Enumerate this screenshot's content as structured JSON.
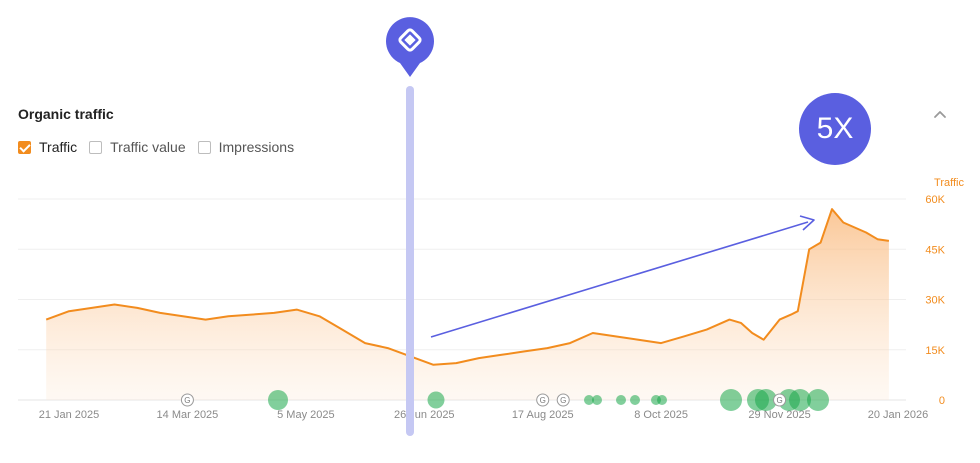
{
  "panel": {
    "title": "Organic traffic",
    "collapse_icon": "chevron-up-icon"
  },
  "legend": [
    {
      "label": "Traffic",
      "checked": true
    },
    {
      "label": "Traffic value",
      "checked": false
    },
    {
      "label": "Impressions",
      "checked": false
    }
  ],
  "annotations": {
    "multiplier": "5X",
    "marker_icon": "location-pin-icon",
    "arrow": "growth-arrow"
  },
  "colors": {
    "traffic": "#f28c1e",
    "marker": "#5a5fe0",
    "event": "#1aa84a"
  },
  "chart_data": {
    "type": "area",
    "y_axis_title": "Traffic",
    "ylim": [
      0,
      60000
    ],
    "yticks": [
      0,
      15000,
      30000,
      45000,
      60000
    ],
    "ytick_labels": [
      "0",
      "15K",
      "30K",
      "45K",
      "60K"
    ],
    "x_ticks": [
      "2025-01-21",
      "2025-03-14",
      "2025-05-05",
      "2025-06-26",
      "2025-08-17",
      "2025-10-08",
      "2025-11-29",
      "2026-01-20"
    ],
    "xtick_labels": [
      "21 Jan 2025",
      "14 Mar 2025",
      "5 May 2025",
      "26 Jun 2025",
      "17 Aug 2025",
      "8 Oct 2025",
      "29 Nov 2025",
      "20 Jan 2026"
    ],
    "grid": true,
    "series": [
      {
        "x": [
          "2025-01-11",
          "2025-01-21",
          "2025-01-31",
          "2025-02-10",
          "2025-02-20",
          "2025-03-02",
          "2025-03-12",
          "2025-03-22",
          "2025-04-01",
          "2025-04-11",
          "2025-04-21",
          "2025-05-01",
          "2025-05-11",
          "2025-05-21",
          "2025-05-31",
          "2025-06-10",
          "2025-06-20",
          "2025-06-30",
          "2025-07-10",
          "2025-07-20",
          "2025-07-30",
          "2025-08-09",
          "2025-08-19",
          "2025-08-29",
          "2025-09-08",
          "2025-09-18",
          "2025-09-28",
          "2025-10-08",
          "2025-10-18",
          "2025-10-28",
          "2025-11-07",
          "2025-11-12",
          "2025-11-17",
          "2025-11-22",
          "2025-11-29",
          "2025-12-04",
          "2025-12-07",
          "2025-12-12",
          "2025-12-17",
          "2025-12-22",
          "2025-12-27",
          "2026-01-06",
          "2026-01-11",
          "2026-01-16"
        ],
        "y": [
          24000,
          26500,
          27500,
          28500,
          27500,
          26000,
          25000,
          24000,
          25000,
          25500,
          26000,
          27000,
          25000,
          21000,
          17000,
          15500,
          13000,
          10500,
          11000,
          12500,
          13500,
          14500,
          15500,
          17000,
          20000,
          19000,
          18000,
          17000,
          19000,
          21000,
          24000,
          23000,
          20000,
          18000,
          24000,
          25500,
          26500,
          45000,
          47000,
          57000,
          53000,
          50000,
          48000,
          47500
        ]
      }
    ],
    "event_markers": [
      {
        "x": "2025-03-14",
        "label": "G"
      },
      {
        "x": "2025-08-17",
        "label": "G"
      },
      {
        "x": "2025-08-26",
        "label": "G"
      },
      {
        "x": "2025-11-29",
        "label": "G"
      }
    ]
  }
}
